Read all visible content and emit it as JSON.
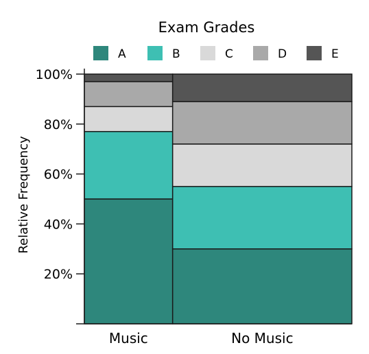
{
  "chart_data": {
    "type": "mosaic",
    "title": "",
    "legend": {
      "title": "Exam Grades",
      "position": "top",
      "entries": [
        {
          "label": "A",
          "color": "#2e877c"
        },
        {
          "label": "B",
          "color": "#3ebfb3"
        },
        {
          "label": "C",
          "color": "#d9d9d9"
        },
        {
          "label": "D",
          "color": "#a9a9a9"
        },
        {
          "label": "E",
          "color": "#555555"
        }
      ]
    },
    "xlabel": "",
    "ylabel": "Relative Frequency",
    "ylim": [
      0,
      100
    ],
    "yticks": [
      {
        "value": 20,
        "label": "20%"
      },
      {
        "value": 40,
        "label": "40%"
      },
      {
        "value": 60,
        "label": "60%"
      },
      {
        "value": 80,
        "label": "80%"
      },
      {
        "value": 100,
        "label": "100%"
      }
    ],
    "categories": [
      "Music",
      "No Music"
    ],
    "category_share": [
      0.33,
      0.67
    ],
    "series": [
      {
        "name": "A",
        "values": [
          50,
          30
        ]
      },
      {
        "name": "B",
        "values": [
          27,
          25
        ]
      },
      {
        "name": "C",
        "values": [
          10,
          17
        ]
      },
      {
        "name": "D",
        "values": [
          10,
          17
        ]
      },
      {
        "name": "E",
        "values": [
          3,
          11
        ]
      }
    ],
    "grid": false
  }
}
